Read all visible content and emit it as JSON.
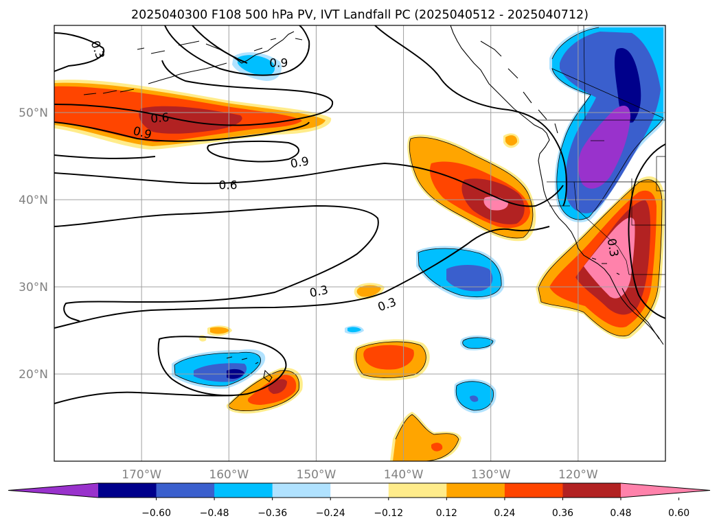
{
  "title": "2025040300 F108 500 hPa PV, IVT Landfall PC (2025040512 - 2025040712)",
  "map": {
    "extent_lon": [
      -180,
      -110
    ],
    "extent_lat": [
      10,
      60
    ],
    "lon_ticks": [
      {
        "value": -170,
        "label": "170°W"
      },
      {
        "value": -160,
        "label": "160°W"
      },
      {
        "value": -150,
        "label": "150°W"
      },
      {
        "value": -140,
        "label": "140°W"
      },
      {
        "value": -130,
        "label": "130°W"
      },
      {
        "value": -120,
        "label": "120°W"
      }
    ],
    "lat_ticks": [
      {
        "value": 50,
        "label": "50°N"
      },
      {
        "value": 40,
        "label": "40°N"
      },
      {
        "value": 30,
        "label": "30°N"
      },
      {
        "value": 20,
        "label": "20°N"
      }
    ],
    "gridlines": true,
    "contour_labels": [
      {
        "text": "0.3",
        "lon": -175,
        "lat": 57.2,
        "rotate": 70
      },
      {
        "text": "0.9",
        "lon": -154.3,
        "lat": 55.7,
        "rotate": 0
      },
      {
        "text": "0.6",
        "lon": -167.9,
        "lat": 49.4,
        "rotate": -5
      },
      {
        "text": "0.9",
        "lon": -169.9,
        "lat": 47.7,
        "rotate": 15
      },
      {
        "text": "0.9",
        "lon": -151.9,
        "lat": 44.3,
        "rotate": -10
      },
      {
        "text": "0.6",
        "lon": -160.1,
        "lat": 41.7,
        "rotate": 0
      },
      {
        "text": "0.3",
        "lon": -149.7,
        "lat": 29.5,
        "rotate": -12
      },
      {
        "text": "0.3",
        "lon": -141.9,
        "lat": 28,
        "rotate": -20
      },
      {
        "text": "0.3",
        "lon": -116,
        "lat": 34.5,
        "rotate": 80
      }
    ]
  },
  "colorbar": {
    "levels": [
      -0.72,
      -0.6,
      -0.48,
      -0.36,
      -0.24,
      -0.12,
      0.12,
      0.24,
      0.36,
      0.48,
      0.6,
      0.72
    ],
    "colors": [
      "#9932cc",
      "#00008b",
      "#3a5fcd",
      "#00bfff",
      "#b0e2ff",
      "#ffffff",
      "#ffec8b",
      "#ffa500",
      "#ff4500",
      "#b22222",
      "#ff82ab"
    ],
    "extend": "both",
    "tick_labels": [
      "−0.60",
      "−0.48",
      "−0.36",
      "−0.24",
      "−0.12",
      "0.12",
      "0.24",
      "0.36",
      "0.48",
      "0.60"
    ]
  },
  "shading_colors": {
    "neg5": "#9932cc",
    "neg4": "#00008b",
    "neg3": "#3a5fcd",
    "neg2": "#00bfff",
    "neg1": "#b0e2ff",
    "pos1": "#ffec8b",
    "pos2": "#ffa500",
    "pos3": "#ff4500",
    "pos4": "#b22222",
    "pos5": "#ff82ab"
  }
}
